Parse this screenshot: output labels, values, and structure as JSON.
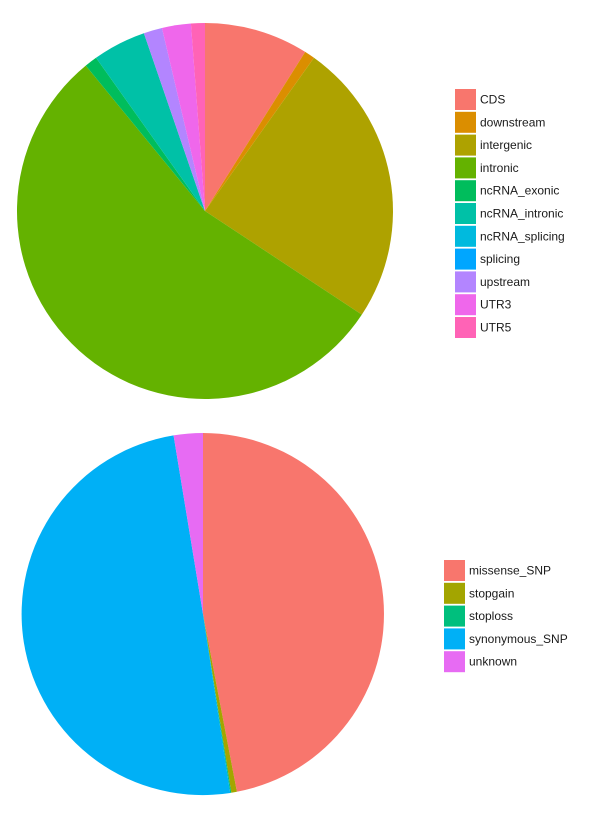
{
  "chart_data": [
    {
      "type": "pie",
      "title": "",
      "categories": [
        "CDS",
        "downstream",
        "intergenic",
        "intronic",
        "ncRNA_exonic",
        "ncRNA_intronic",
        "ncRNA_splicing",
        "splicing",
        "upstream",
        "UTR3",
        "UTR5"
      ],
      "values": [
        9.0,
        0.9,
        24.6,
        55.1,
        1.1,
        4.6,
        0.0,
        0.0,
        1.6,
        2.5,
        1.2
      ],
      "colors": [
        "#F8766D",
        "#DB8E00",
        "#AEA200",
        "#64B200",
        "#00BD5C",
        "#00C1A7",
        "#00BADE",
        "#00A6FF",
        "#B385FF",
        "#EF67EB",
        "#FF63B6"
      ],
      "legend_position": "right"
    },
    {
      "type": "pie",
      "title": "",
      "categories": [
        "missense_SNP",
        "stopgain",
        "stoploss",
        "synonymous_SNP",
        "unknown"
      ],
      "values": [
        47.0,
        0.5,
        0.1,
        49.8,
        2.6
      ],
      "colors": [
        "#F8766D",
        "#A3A500",
        "#00BF7D",
        "#00B0F6",
        "#E76BF3"
      ],
      "legend_position": "right"
    }
  ]
}
